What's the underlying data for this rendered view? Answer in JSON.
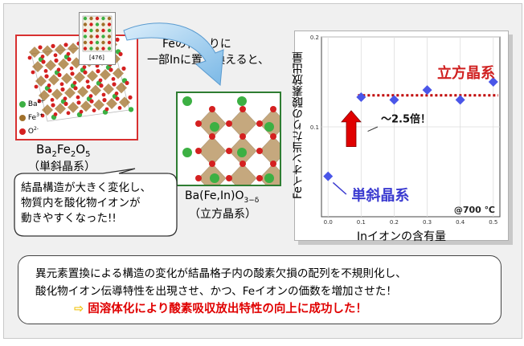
{
  "left_structure": {
    "formula": "Ba2Fe2O5",
    "system": "（単斜晶系）",
    "inset_label": "[476]",
    "legend": [
      {
        "ion": "Ba",
        "charge": "2+",
        "color": "#3cb043"
      },
      {
        "ion": "Fe",
        "charge": "3+",
        "color": "#a0702a"
      },
      {
        "ion": "O",
        "charge": "2-",
        "color": "#d42020"
      }
    ]
  },
  "substitution_note": {
    "line1": "Feの代わりに",
    "line2": "一部Inに置き換えると、"
  },
  "right_structure": {
    "formula_main": "Ba(Fe,In)O",
    "formula_sub": "3−δ",
    "system": "（立方晶系）"
  },
  "speech_bubble": {
    "lines": [
      "結晶構造が大きく変化し、",
      "物質内を酸化物イオンが",
      "動きやすくなった!!"
    ]
  },
  "chart_data": {
    "type": "scatter",
    "ylabel": "Feイオン当たりの酸素放出量",
    "xlabel": "Inイオンの含有量",
    "xlim": [
      -0.02,
      0.52
    ],
    "ylim": [
      0,
      0.2
    ],
    "xticks": [
      "0.0",
      "0.1",
      "0.2",
      "0.3",
      "0.4",
      "0.5"
    ],
    "yticks": [
      "0.1",
      "0.2"
    ],
    "grid": true,
    "points": [
      {
        "x": 0.0,
        "y": 0.045
      },
      {
        "x": 0.1,
        "y": 0.133
      },
      {
        "x": 0.2,
        "y": 0.13
      },
      {
        "x": 0.3,
        "y": 0.141
      },
      {
        "x": 0.4,
        "y": 0.13
      },
      {
        "x": 0.5,
        "y": 0.15
      }
    ],
    "reference_line_y": 0.135,
    "annotations": {
      "cubic": "立方晶系",
      "monoclinic": "単斜晶系",
      "factor": "〜2.5倍！",
      "condition": "@700 ℃"
    },
    "colors": {
      "marker": "#4a56e8",
      "ref_line": "#c00000",
      "cubic_text": "#d02020",
      "mono_text": "#3a3ad0",
      "up_arrow": "#e00000"
    }
  },
  "summary": {
    "line1": "異元素置換による構造の変化が結晶格子内の酸素欠損の配列を不規則化し、",
    "line2": "酸化物イオン伝導特性を出現させ、かつ、Feイオンの価数を増加させた！",
    "arrow_glyph": "⇨",
    "conclusion": "固溶体化により酸素吸収放出特性の向上に成功した！",
    "conclusion_color": "#e00000"
  }
}
